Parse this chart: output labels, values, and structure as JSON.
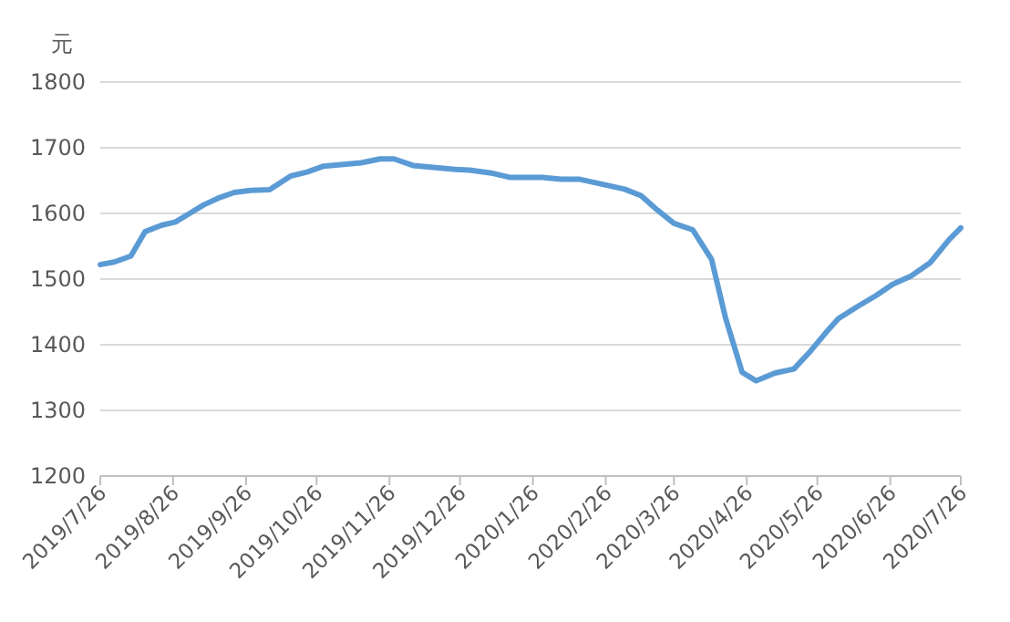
{
  "chart_data": {
    "type": "line",
    "ylabel": "元",
    "x": [
      "2019-07-26",
      "2019-08-01",
      "2019-08-08",
      "2019-08-14",
      "2019-08-21",
      "2019-08-27",
      "2019-09-02",
      "2019-09-08",
      "2019-09-14",
      "2019-09-21",
      "2019-09-28",
      "2019-10-06",
      "2019-10-15",
      "2019-10-22",
      "2019-10-29",
      "2019-11-14",
      "2019-11-22",
      "2019-11-28",
      "2019-12-06",
      "2019-12-24",
      "2019-12-30",
      "2020-01-09",
      "2020-01-16",
      "2020-01-30",
      "2020-02-07",
      "2020-02-15",
      "2020-03-05",
      "2020-03-12",
      "2020-03-19",
      "2020-03-26",
      "2020-04-03",
      "2020-04-11",
      "2020-04-17",
      "2020-04-24",
      "2020-04-30",
      "2020-05-08",
      "2020-05-16",
      "2020-05-23",
      "2020-05-30",
      "2020-06-04",
      "2020-06-12",
      "2020-06-20",
      "2020-06-27",
      "2020-07-05",
      "2020-07-13",
      "2020-07-21",
      "2020-07-26"
    ],
    "series": [
      {
        "color": "#5b9bd5",
        "values": [
          1522,
          1526,
          1535,
          1572,
          1582,
          1587,
          1600,
          1613,
          1623,
          1632,
          1635,
          1636,
          1657,
          1663,
          1672,
          1677,
          1683,
          1683,
          1673,
          1667,
          1666,
          1661,
          1655,
          1655,
          1652,
          1652,
          1637,
          1627,
          1605,
          1585,
          1575,
          1530,
          1440,
          1358,
          1345,
          1357,
          1363,
          1390,
          1420,
          1440,
          1458,
          1475,
          1492,
          1505,
          1525,
          1560,
          1578
        ]
      }
    ],
    "xlim": [
      "2019-07-26",
      "2020-07-26"
    ],
    "xticks": [
      {
        "value": "2019-07-26",
        "label": "2019/7/26"
      },
      {
        "value": "2019-08-26",
        "label": "2019/8/26"
      },
      {
        "value": "2019-09-26",
        "label": "2019/9/26"
      },
      {
        "value": "2019-10-26",
        "label": "2019/10/26"
      },
      {
        "value": "2019-11-26",
        "label": "2019/11/26"
      },
      {
        "value": "2019-12-26",
        "label": "2019/12/26"
      },
      {
        "value": "2020-01-26",
        "label": "2020/1/26"
      },
      {
        "value": "2020-02-26",
        "label": "2020/2/26"
      },
      {
        "value": "2020-03-26",
        "label": "2020/3/26"
      },
      {
        "value": "2020-04-26",
        "label": "2020/4/26"
      },
      {
        "value": "2020-05-26",
        "label": "2020/5/26"
      },
      {
        "value": "2020-06-26",
        "label": "2020/6/26"
      },
      {
        "value": "2020-07-26",
        "label": "2020/7/26"
      }
    ],
    "ylim": [
      1200,
      1800
    ],
    "yticks": [
      1200,
      1300,
      1400,
      1500,
      1600,
      1700,
      1800
    ],
    "grid": "y",
    "marker": "none",
    "line_style": "solid"
  }
}
